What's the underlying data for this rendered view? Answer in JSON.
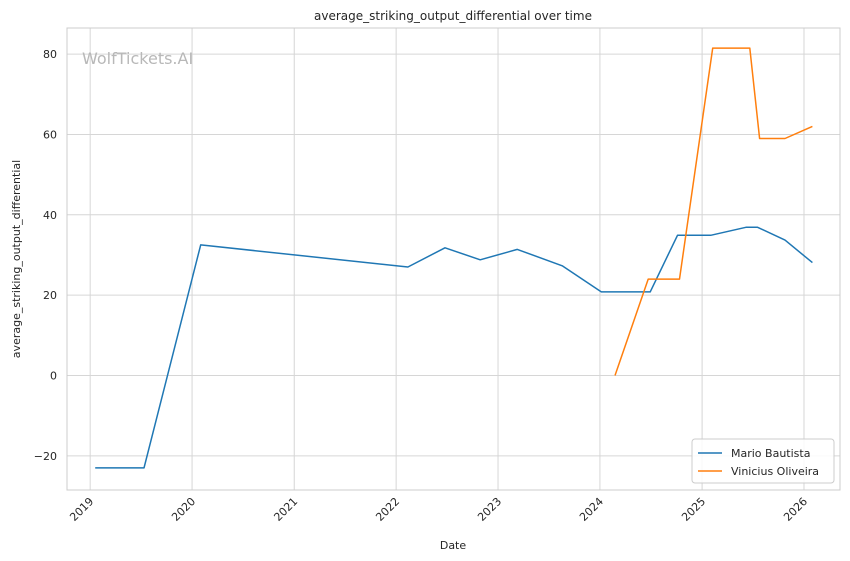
{
  "chart_data": {
    "type": "line",
    "title": "average_striking_output_differential over time",
    "xlabel": "Date",
    "ylabel": "average_striking_output_differential",
    "watermark": "WolfTickets.AI",
    "x_ticks": [
      "2019",
      "2020",
      "2021",
      "2022",
      "2023",
      "2024",
      "2025",
      "2026"
    ],
    "y_ticks": [
      -20,
      0,
      20,
      40,
      60,
      80
    ],
    "xlim": [
      "2018-10-10",
      "2026-05-10"
    ],
    "ylim": [
      -28.5,
      86.5
    ],
    "grid": true,
    "legend_position": "bottom-right",
    "series": [
      {
        "name": "Mario Bautista",
        "color": "#1f77b4",
        "points": [
          {
            "x": "2019-01-19",
            "y": -23
          },
          {
            "x": "2019-07-13",
            "y": -23
          },
          {
            "x": "2020-02-01",
            "y": 32.5
          },
          {
            "x": "2022-02-12",
            "y": 27
          },
          {
            "x": "2022-06-25",
            "y": 31.8
          },
          {
            "x": "2022-10-29",
            "y": 28.8
          },
          {
            "x": "2023-03-11",
            "y": 31.4
          },
          {
            "x": "2023-08-19",
            "y": 27.3
          },
          {
            "x": "2024-01-06",
            "y": 20.8
          },
          {
            "x": "2024-06-29",
            "y": 20.8
          },
          {
            "x": "2024-10-05",
            "y": 34.9
          },
          {
            "x": "2025-02-01",
            "y": 34.9
          },
          {
            "x": "2025-06-07",
            "y": 36.9
          },
          {
            "x": "2025-07-19",
            "y": 36.9
          },
          {
            "x": "2025-10-25",
            "y": 33.7
          },
          {
            "x": "2026-01-31",
            "y": 28.1
          }
        ]
      },
      {
        "name": "Vinicius Oliveira",
        "color": "#ff7f0e",
        "points": [
          {
            "x": "2024-02-24",
            "y": 0
          },
          {
            "x": "2024-06-22",
            "y": 24
          },
          {
            "x": "2024-10-12",
            "y": 24
          },
          {
            "x": "2025-02-08",
            "y": 81.5
          },
          {
            "x": "2025-06-21",
            "y": 81.5
          },
          {
            "x": "2025-07-26",
            "y": 59
          },
          {
            "x": "2025-10-25",
            "y": 59
          },
          {
            "x": "2026-01-31",
            "y": 62
          }
        ]
      }
    ]
  }
}
